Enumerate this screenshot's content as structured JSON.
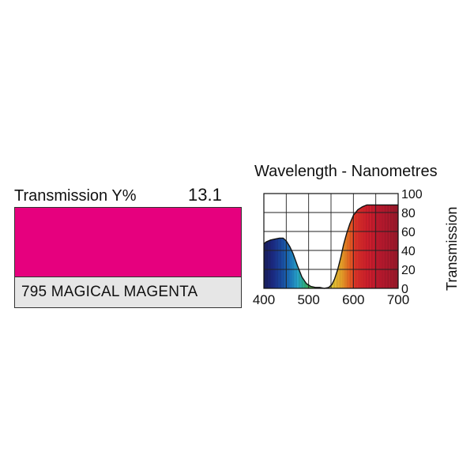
{
  "product": {
    "transmission_label": "Transmission Y%",
    "transmission_value": "13.1",
    "filter_name": "795 MAGICAL MAGENTA",
    "swatch_color": "#e6007e"
  },
  "chart_data": {
    "type": "area",
    "title": "Wavelength - Nanometres",
    "xlabel": "",
    "ylabel": "Transmission",
    "xlim": [
      400,
      700
    ],
    "ylim": [
      0,
      100
    ],
    "x_ticks": [
      "400",
      "500",
      "600",
      "700"
    ],
    "y_ticks": [
      "0",
      "20",
      "40",
      "60",
      "80",
      "100"
    ],
    "grid": true,
    "series": [
      {
        "x": [
          400,
          405,
          415,
          425,
          435,
          443,
          450,
          458,
          465,
          475,
          485,
          495,
          505,
          515,
          525,
          535,
          545,
          552,
          558,
          565,
          572,
          578,
          585,
          592,
          600,
          610,
          620,
          630,
          640,
          650,
          660,
          670,
          680,
          690,
          700
        ],
        "y": [
          47,
          49,
          51,
          52,
          53,
          53,
          50,
          44,
          37,
          24,
          12,
          5,
          2,
          1,
          1,
          0,
          1,
          4,
          10,
          20,
          33,
          46,
          58,
          68,
          77,
          83,
          86,
          88,
          88,
          88,
          88,
          88,
          88,
          88,
          88
        ]
      }
    ]
  }
}
